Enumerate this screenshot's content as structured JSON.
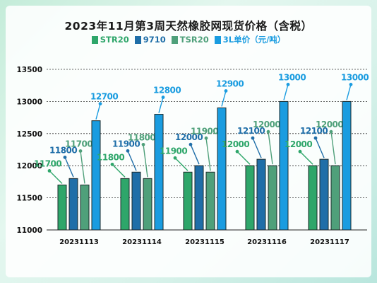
{
  "title": "2023年11月第3周天然橡胶网现货价格（含税）",
  "chart_data": {
    "type": "bar",
    "title": "2023年11月第3周天然橡胶网现货价格（含税）",
    "categories": [
      "20231113",
      "20231114",
      "20231115",
      "20231116",
      "20231117"
    ],
    "series": [
      {
        "name": "STR20",
        "color": "#2ea66a",
        "values": [
          11700,
          11800,
          11900,
          12000,
          12000
        ]
      },
      {
        "name": "9710",
        "color": "#1f6ea8",
        "values": [
          11800,
          11900,
          12000,
          12100,
          12100
        ]
      },
      {
        "name": "TSR20",
        "color": "#4fa07a",
        "values": [
          11700,
          11800,
          11900,
          12000,
          12000
        ]
      },
      {
        "name": "3L单价（元/吨）",
        "color": "#1a9ce0",
        "values": [
          12700,
          12800,
          12900,
          13000,
          13000
        ]
      }
    ],
    "yticks": [
      "13500",
      "13000",
      "12500",
      "12000",
      "11500",
      "11000"
    ],
    "ylim": [
      11000,
      13500
    ],
    "grid": true,
    "legend_position": "top"
  }
}
